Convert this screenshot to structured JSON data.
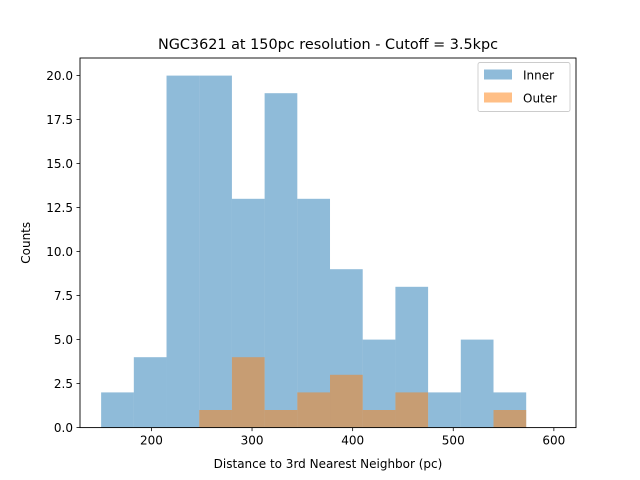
{
  "chart_data": {
    "type": "bar",
    "title": "NGC3621 at 150pc resolution - Cutoff = 3.5kpc",
    "xlabel": "Distance to 3rd Nearest Neighbor (pc)",
    "ylabel": "Counts",
    "xlim": [
      129,
      622
    ],
    "ylim": [
      0,
      21
    ],
    "xticks": [
      200,
      300,
      400,
      500,
      600
    ],
    "yticks": [
      0.0,
      2.5,
      5.0,
      7.5,
      10.0,
      12.5,
      15.0,
      17.5,
      20.0
    ],
    "xtick_labels": [
      "200",
      "300",
      "400",
      "500",
      "600"
    ],
    "ytick_labels": [
      "0.0",
      "2.5",
      "5.0",
      "7.5",
      "10.0",
      "12.5",
      "15.0",
      "17.5",
      "20.0"
    ],
    "legend_position": "top-right",
    "grid": false,
    "series": [
      {
        "name": "Inner",
        "color": "#1f77b4",
        "opacity": 0.5,
        "bin_edges": [
          150,
          182.5,
          215,
          247.5,
          280,
          312.5,
          345,
          377.5,
          410,
          442.5,
          475,
          507.5,
          540,
          572.5
        ],
        "values": [
          2,
          4,
          20,
          20,
          13,
          19,
          13,
          9,
          5,
          8,
          2,
          5,
          2
        ]
      },
      {
        "name": "Outer",
        "color": "#ff7f0e",
        "opacity": 0.5,
        "bin_edges": [
          247.5,
          280,
          312.5,
          345,
          377.5,
          410,
          442.5,
          475,
          507.5,
          540,
          572.5
        ],
        "values": [
          1,
          4,
          1,
          2,
          3,
          1,
          2,
          0,
          0,
          1
        ]
      }
    ]
  }
}
